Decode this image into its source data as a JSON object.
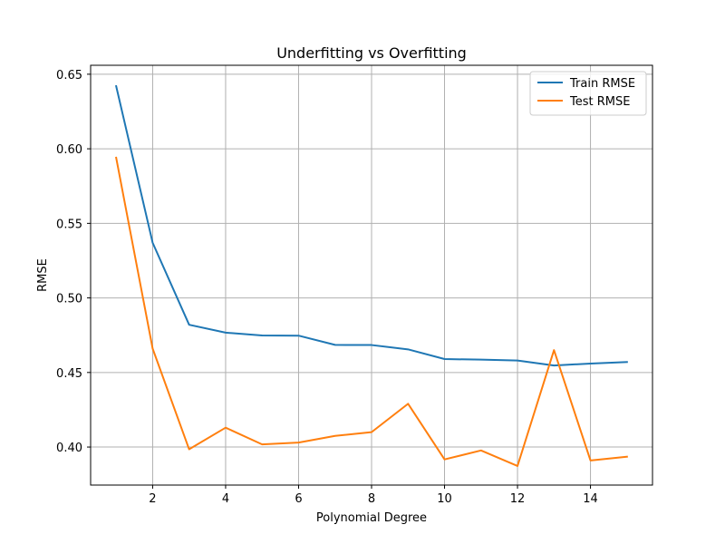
{
  "chart_data": {
    "type": "line",
    "title": "Underfitting vs Overfitting",
    "xlabel": "Polynomial Degree",
    "ylabel": "RMSE",
    "x": [
      1,
      2,
      3,
      4,
      5,
      6,
      7,
      8,
      9,
      10,
      11,
      12,
      13,
      14,
      15
    ],
    "xlim": [
      0.3,
      15.7
    ],
    "ylim": [
      0.3745,
      0.656
    ],
    "xticks": [
      2,
      4,
      6,
      8,
      10,
      12,
      14
    ],
    "yticks": [
      0.4,
      0.45,
      0.5,
      0.55,
      0.6,
      0.65
    ],
    "xtick_labels": [
      "2",
      "4",
      "6",
      "8",
      "10",
      "12",
      "14"
    ],
    "ytick_labels": [
      "0.40",
      "0.45",
      "0.50",
      "0.55",
      "0.60",
      "0.65"
    ],
    "grid": true,
    "legend_position": "top-right",
    "series": [
      {
        "name": "Train RMSE",
        "color": "#1f77b4",
        "values": [
          0.642,
          0.537,
          0.482,
          0.4767,
          0.4748,
          0.4747,
          0.4685,
          0.4684,
          0.4655,
          0.459,
          0.4586,
          0.458,
          0.4547,
          0.456,
          0.457
        ]
      },
      {
        "name": "Test RMSE",
        "color": "#ff7f0e",
        "values": [
          0.594,
          0.466,
          0.3985,
          0.413,
          0.4018,
          0.403,
          0.4075,
          0.41,
          0.429,
          0.3917,
          0.3977,
          0.3873,
          0.465,
          0.391,
          0.3935
        ]
      }
    ]
  }
}
